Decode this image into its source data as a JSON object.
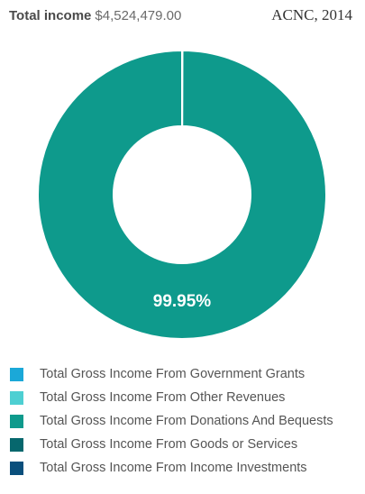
{
  "header": {
    "label": "Total income",
    "value": "$4,524,479.00"
  },
  "source": "ACNC, 2014",
  "chart_data": {
    "type": "pie",
    "donut": true,
    "series": [
      {
        "name": "Total Gross Income From Government Grants",
        "value": 0.0,
        "color": "#1ba8d8"
      },
      {
        "name": "Total Gross Income From Other Revenues",
        "value": 0.05,
        "color": "#4ecfd2"
      },
      {
        "name": "Total Gross Income From Donations And Bequests",
        "value": 99.95,
        "color": "#0e9a8c"
      },
      {
        "name": "Total Gross Income From Goods or Services",
        "value": 0.0,
        "color": "#06676d"
      },
      {
        "name": "Total Gross Income From Income Investments",
        "value": 0.0,
        "color": "#0a4f7c"
      }
    ],
    "data_labels": [
      "99.95%"
    ],
    "legend_position": "bottom"
  }
}
